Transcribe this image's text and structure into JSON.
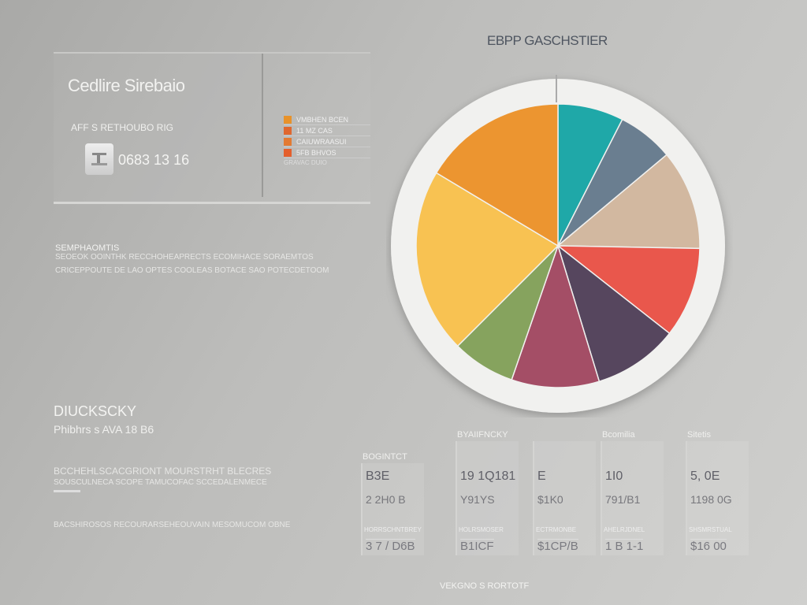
{
  "card": {
    "title": "Cedlire Sirebaio",
    "subtitle": "AFF S RETHOUBO RIG",
    "value": "0683 13 16",
    "icon": "document-icon",
    "legend": [
      {
        "label": "VMBHEN BCEN",
        "color": "#e8922a"
      },
      {
        "label": "11 MZ CAS",
        "color": "#e0672e"
      },
      {
        "label": "CAIUWRAASUI",
        "color": "#e37a32"
      },
      {
        "label": "5FB BHVOS",
        "color": "#e45f2c"
      }
    ],
    "legend_footer": "GRAVAC DUIO"
  },
  "section1": {
    "heading": "SEMPHAOMTIS",
    "lines": [
      "SEOEOK OOINTHK RECCHOHEAPRECTS ECOMIHACE SORAEMTOS",
      "CRICEPPOUTE DE LAO OPTES COOLEAS BOTACE SAO POTECDETOOM"
    ]
  },
  "section2": {
    "heading": "DIUCKSCKY",
    "subheading": "Phibhrs s AVA 18 B6",
    "lines": [
      "BCCHEHLSCACGRIONT MOURSTRHT BLECRES",
      "SOUSCULNECA SCOPE TAMUCOFAC SCCEDALENMECE"
    ],
    "footer_line": "BACSHIROSOS RECOURARSEHEOUVAIN MESOMUCOM OBNE"
  },
  "chart_data": {
    "type": "pie",
    "title": "EBPP GASCHSTIER",
    "unit": "percent (estimated from slice angles)",
    "slices": [
      {
        "value": 7.5,
        "color": "#1fa8a8"
      },
      {
        "value": 6.4,
        "color": "#6a7e90"
      },
      {
        "value": 11.4,
        "color": "#d2b8a0"
      },
      {
        "value": 10.3,
        "color": "#e9574c"
      },
      {
        "value": 9.7,
        "color": "#56465e"
      },
      {
        "value": 10.0,
        "color": "#a44e66"
      },
      {
        "value": 7.2,
        "color": "#86a35e"
      },
      {
        "value": 21.1,
        "color": "#f8c252"
      },
      {
        "value": 16.4,
        "color": "#ec9530"
      }
    ]
  },
  "stats": [
    {
      "heading": "BOGINTCT",
      "v1": "B3E",
      "v2": "2 2H0 B",
      "label": "HORRSCHNTBREY",
      "v3": "3 7 / D6B"
    },
    {
      "heading": "BYAIIFNCKY",
      "v1": "19 1Q181",
      "v2": "Y91YS",
      "label": "HOLRSMOSER",
      "v3": "B1ICF"
    },
    {
      "heading": "",
      "v1": "E",
      "v2": "$1K0",
      "label": "ECTRMONBE",
      "v3": "$1CP/B"
    },
    {
      "heading": "Bcomilia",
      "v1": "1I0",
      "v2": "791/B1",
      "label": "AHELRJDNEL",
      "v3": "1 B 1-1"
    },
    {
      "heading": "Sitetis",
      "v1": "5, 0E",
      "v2": "1198 0G",
      "label": "SHSMRSTUAL",
      "v3": "$16 00"
    }
  ],
  "footer": "VEKGNO S RORTOTF"
}
